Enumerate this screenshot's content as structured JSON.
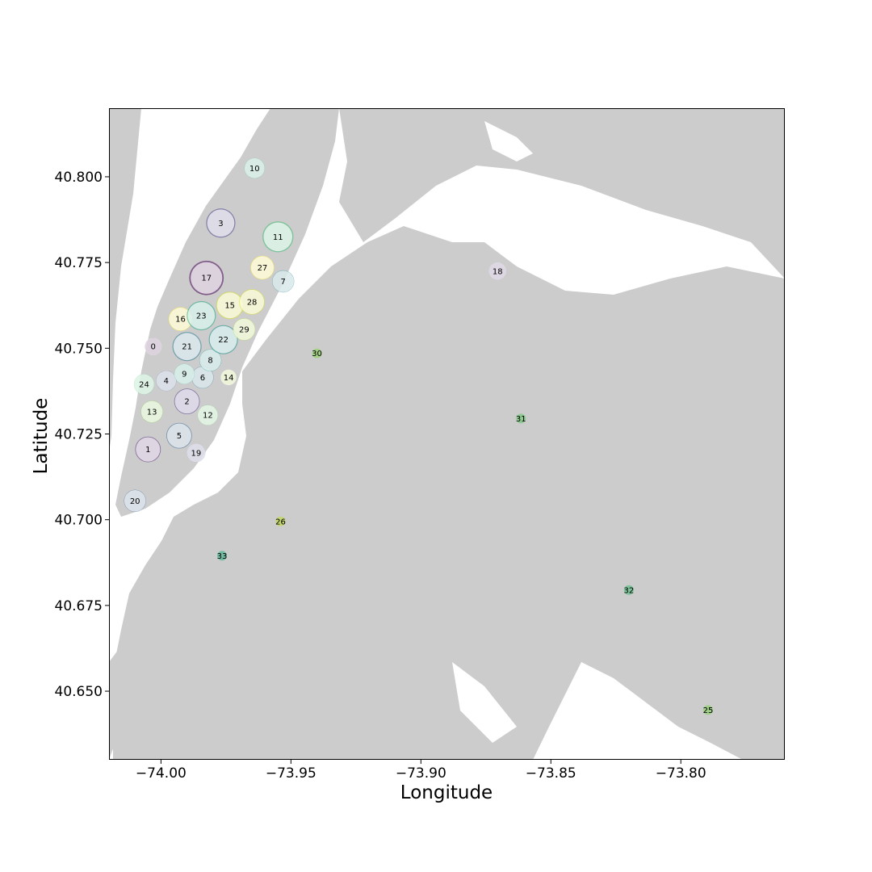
{
  "chart_data": {
    "type": "scatter",
    "title": "",
    "xlabel": "Longitude",
    "ylabel": "Latitude",
    "xlim": [
      -74.02,
      -73.76
    ],
    "ylim": [
      40.63,
      40.82
    ],
    "xticks": [
      -74.0,
      -73.95,
      -73.9,
      -73.85,
      -73.8
    ],
    "xtick_labels": [
      "−74.00",
      "−73.95",
      "−73.90",
      "−73.85",
      "−73.80"
    ],
    "yticks": [
      40.65,
      40.675,
      40.7,
      40.725,
      40.75,
      40.775,
      40.8
    ],
    "ytick_labels": [
      "40.650",
      "40.675",
      "40.700",
      "40.725",
      "40.750",
      "40.775",
      "40.800"
    ],
    "grid": false,
    "legend": "none",
    "background_map": "light grey land with white water (New York City area)",
    "colormap": "viridis",
    "clusters": [
      {
        "id": "0",
        "lon": -74.003,
        "lat": 40.7505,
        "size": 0.2,
        "color": "#440154"
      },
      {
        "id": "1",
        "lon": -74.005,
        "lat": 40.7205,
        "size": 0.45,
        "color": "#48186a"
      },
      {
        "id": "2",
        "lon": -73.99,
        "lat": 40.7345,
        "size": 0.45,
        "color": "#472d7b"
      },
      {
        "id": "3",
        "lon": -73.977,
        "lat": 40.7865,
        "size": 0.55,
        "color": "#424086"
      },
      {
        "id": "4",
        "lon": -73.998,
        "lat": 40.7405,
        "size": 0.3,
        "color": "#3b528b"
      },
      {
        "id": "5",
        "lon": -73.993,
        "lat": 40.7245,
        "size": 0.45,
        "color": "#33638d"
      },
      {
        "id": "6",
        "lon": -73.984,
        "lat": 40.7415,
        "size": 0.35,
        "color": "#2c728e"
      },
      {
        "id": "7",
        "lon": -73.953,
        "lat": 40.7695,
        "size": 0.35,
        "color": "#26828e"
      },
      {
        "id": "8",
        "lon": -73.981,
        "lat": 40.7465,
        "size": 0.35,
        "color": "#21918c"
      },
      {
        "id": "9",
        "lon": -73.991,
        "lat": 40.7425,
        "size": 0.3,
        "color": "#1fa088"
      },
      {
        "id": "10",
        "lon": -73.964,
        "lat": 40.8025,
        "size": 0.3,
        "color": "#28ae80"
      },
      {
        "id": "11",
        "lon": -73.955,
        "lat": 40.7825,
        "size": 0.6,
        "color": "#3fbc73"
      },
      {
        "id": "12",
        "lon": -73.982,
        "lat": 40.7305,
        "size": 0.3,
        "color": "#5ec962"
      },
      {
        "id": "13",
        "lon": -74.0035,
        "lat": 40.7315,
        "size": 0.35,
        "color": "#84d44b"
      },
      {
        "id": "14",
        "lon": -73.974,
        "lat": 40.7415,
        "size": 0.15,
        "color": "#addc30"
      },
      {
        "id": "15",
        "lon": -73.9735,
        "lat": 40.7625,
        "size": 0.5,
        "color": "#d8e219"
      },
      {
        "id": "16",
        "lon": -73.9925,
        "lat": 40.7585,
        "size": 0.4,
        "color": "#fde725"
      },
      {
        "id": "17",
        "lon": -73.9825,
        "lat": 40.7705,
        "size": 0.7,
        "color": "#440154"
      },
      {
        "id": "18",
        "lon": -73.8705,
        "lat": 40.7725,
        "size": 0.2,
        "color": "#482475"
      },
      {
        "id": "19",
        "lon": -73.9865,
        "lat": 40.7195,
        "size": 0.25,
        "color": "#414487"
      },
      {
        "id": "20",
        "lon": -74.01,
        "lat": 40.7055,
        "size": 0.35,
        "color": "#355f8d"
      },
      {
        "id": "21",
        "lon": -73.99,
        "lat": 40.7505,
        "size": 0.55,
        "color": "#2a788e"
      },
      {
        "id": "22",
        "lon": -73.976,
        "lat": 40.7525,
        "size": 0.55,
        "color": "#21918c"
      },
      {
        "id": "23",
        "lon": -73.9845,
        "lat": 40.7595,
        "size": 0.55,
        "color": "#22a884"
      },
      {
        "id": "24",
        "lon": -74.0065,
        "lat": 40.7395,
        "size": 0.3,
        "color": "#44bf70"
      },
      {
        "id": "25",
        "lon": -73.7895,
        "lat": 40.6445,
        "size": 0.0,
        "color": "#7ad151"
      },
      {
        "id": "26",
        "lon": -73.954,
        "lat": 40.6995,
        "size": 0.0,
        "color": "#bddf26"
      },
      {
        "id": "27",
        "lon": -73.961,
        "lat": 40.7735,
        "size": 0.4,
        "color": "#fde725"
      },
      {
        "id": "28",
        "lon": -73.965,
        "lat": 40.7635,
        "size": 0.45,
        "color": "#d8e219"
      },
      {
        "id": "29",
        "lon": -73.968,
        "lat": 40.7555,
        "size": 0.35,
        "color": "#addc30"
      },
      {
        "id": "30",
        "lon": -73.94,
        "lat": 40.7485,
        "size": 0.0,
        "color": "#84d44b"
      },
      {
        "id": "31",
        "lon": -73.8615,
        "lat": 40.7295,
        "size": 0.0,
        "color": "#5ec962"
      },
      {
        "id": "32",
        "lon": -73.82,
        "lat": 40.6795,
        "size": 0.0,
        "color": "#3fbc73"
      },
      {
        "id": "33",
        "lon": -73.9765,
        "lat": 40.6895,
        "size": 0.0,
        "color": "#28ae80"
      }
    ]
  }
}
